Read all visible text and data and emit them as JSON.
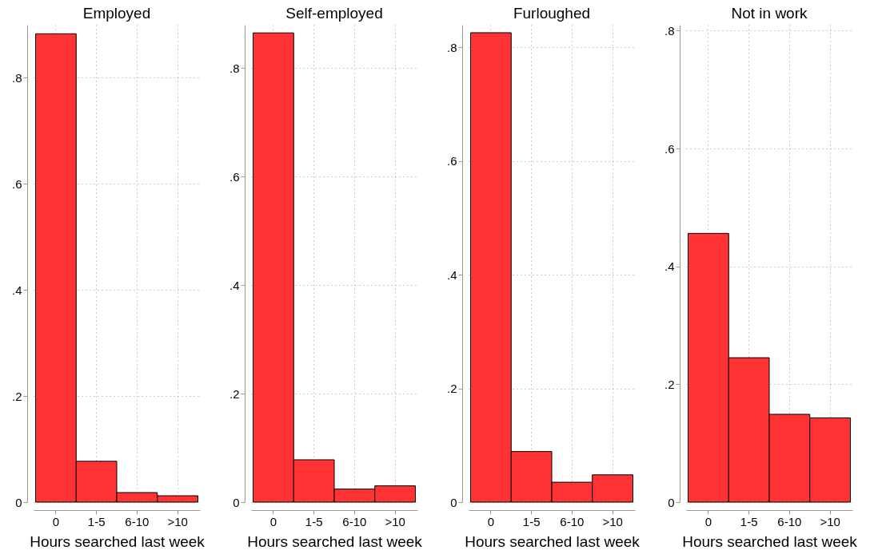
{
  "chart_data": [
    {
      "type": "bar",
      "title": "Employed",
      "xlabel": "Hours searched last week",
      "categories": [
        "0",
        "1-5",
        "6-10",
        ">10"
      ],
      "values": [
        0.883,
        0.077,
        0.018,
        0.012
      ],
      "color": "#ff3333",
      "ylim": [
        0,
        0.9
      ],
      "yticks": [
        {
          "value": 0,
          "label": "0"
        },
        {
          "value": 0.2,
          "label": ".2"
        },
        {
          "value": 0.4,
          "label": ".4"
        },
        {
          "value": 0.6,
          "label": ".6"
        },
        {
          "value": 0.8,
          "label": ".8"
        }
      ],
      "grid": true
    },
    {
      "type": "bar",
      "title": "Self-employed",
      "xlabel": "Hours searched last week",
      "categories": [
        "0",
        "1-5",
        "6-10",
        ">10"
      ],
      "values": [
        0.865,
        0.078,
        0.024,
        0.03
      ],
      "color": "#ff3333",
      "ylim": [
        0,
        0.88
      ],
      "yticks": [
        {
          "value": 0,
          "label": "0"
        },
        {
          "value": 0.2,
          "label": ".2"
        },
        {
          "value": 0.4,
          "label": ".4"
        },
        {
          "value": 0.6,
          "label": ".6"
        },
        {
          "value": 0.8,
          "label": ".8"
        }
      ],
      "grid": true
    },
    {
      "type": "bar",
      "title": "Furloughed",
      "xlabel": "Hours searched last week",
      "categories": [
        "0",
        "1-5",
        "6-10",
        ">10"
      ],
      "values": [
        0.826,
        0.089,
        0.035,
        0.048
      ],
      "color": "#ff3333",
      "ylim": [
        0,
        0.84
      ],
      "yticks": [
        {
          "value": 0,
          "label": "0"
        },
        {
          "value": 0.2,
          "label": ".2"
        },
        {
          "value": 0.4,
          "label": ".4"
        },
        {
          "value": 0.6,
          "label": ".6"
        },
        {
          "value": 0.8,
          "label": ".8"
        }
      ],
      "grid": true
    },
    {
      "type": "bar",
      "title": "Not in work",
      "xlabel": "Hours searched last week",
      "categories": [
        "0",
        "1-5",
        "6-10",
        ">10"
      ],
      "values": [
        0.456,
        0.245,
        0.149,
        0.143
      ],
      "color": "#ff3333",
      "ylim": [
        0,
        0.81
      ],
      "yticks": [
        {
          "value": 0,
          "label": "0"
        },
        {
          "value": 0.2,
          "label": ".2"
        },
        {
          "value": 0.4,
          "label": ".4"
        },
        {
          "value": 0.6,
          "label": ".6"
        },
        {
          "value": 0.8,
          "label": ".8"
        }
      ],
      "grid": true
    }
  ]
}
